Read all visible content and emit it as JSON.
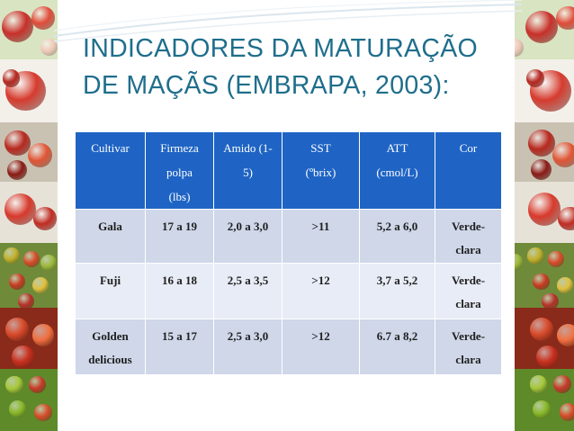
{
  "slide": {
    "title_line1": "INDICADORES DA MATURAÇÃO",
    "title_line2": "DE MAÇÃS (EMBRAPA, 2003):"
  },
  "table": {
    "headers": [
      [
        "Cultivar"
      ],
      [
        "Firmeza",
        "polpa",
        "(lbs)"
      ],
      [
        "Amido (1-",
        "5)"
      ],
      [
        "SST",
        "(ºbrix)"
      ],
      [
        "ATT",
        "(cmol/L)"
      ],
      [
        "Cor"
      ]
    ],
    "rows": [
      [
        [
          "Gala"
        ],
        [
          "17 a 19"
        ],
        [
          "2,0 a 3,0"
        ],
        [
          ">11"
        ],
        [
          "5,2 a 6,0"
        ],
        [
          "Verde-",
          "clara"
        ]
      ],
      [
        [
          "Fuji"
        ],
        [
          "16 a 18"
        ],
        [
          "2,5 a 3,5"
        ],
        [
          ">12"
        ],
        [
          "3,7 a 5,2"
        ],
        [
          "Verde-",
          "clara"
        ]
      ],
      [
        [
          "Golden",
          "delicious"
        ],
        [
          "15 a 17"
        ],
        [
          "2,5 a 3,0"
        ],
        [
          ">12"
        ],
        [
          "6.7 a 8,2"
        ],
        [
          "Verde-",
          "clara"
        ]
      ]
    ]
  },
  "colors": {
    "title": "#1f6e8c",
    "header_bg": "#1f64c4",
    "row_dark": "#cfd7e9",
    "row_light": "#e8ecf6"
  },
  "decor": {
    "left_strip": "apples-photo-strip",
    "right_strip": "apples-photo-strip"
  }
}
